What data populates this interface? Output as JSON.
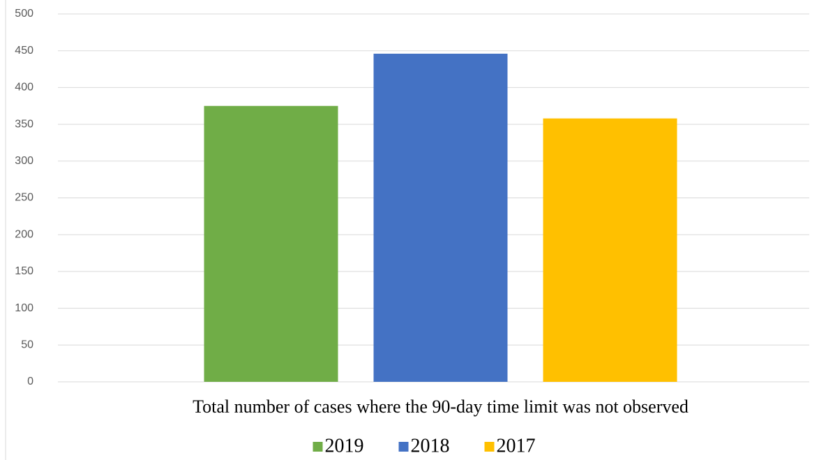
{
  "chart_data": {
    "type": "bar",
    "categories": [
      "Total number of cases where the 90-day time limit was not observed"
    ],
    "series": [
      {
        "name": "2019",
        "color": "#70ad47",
        "values": [
          375
        ]
      },
      {
        "name": "2018",
        "color": "#4472c4",
        "values": [
          446
        ]
      },
      {
        "name": "2017",
        "color": "#ffc000",
        "values": [
          358
        ]
      }
    ],
    "ylim": [
      0,
      500
    ],
    "yticks": [
      0,
      50,
      100,
      150,
      200,
      250,
      300,
      350,
      400,
      450,
      500
    ],
    "grid": true,
    "legend": "bottom"
  }
}
